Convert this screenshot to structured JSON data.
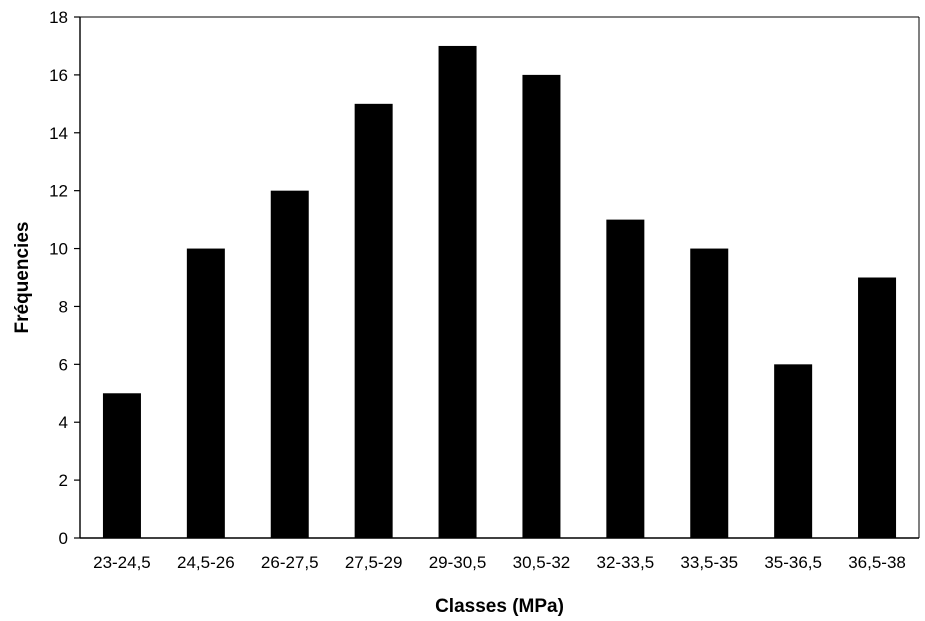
{
  "chart_data": {
    "type": "bar",
    "title": "",
    "xlabel": "Classes (MPa)",
    "ylabel": "Fréquencies",
    "categories": [
      "23-24,5",
      "24,5-26",
      "26-27,5",
      "27,5-29",
      "29-30,5",
      "30,5-32",
      "32-33,5",
      "33,5-35",
      "35-36,5",
      "36,5-38"
    ],
    "values": [
      5,
      10,
      12,
      15,
      17,
      16,
      11,
      10,
      6,
      9
    ],
    "ylim": [
      0,
      18
    ],
    "yticks": [
      0,
      2,
      4,
      6,
      8,
      10,
      12,
      14,
      16,
      18
    ],
    "grid": false,
    "legend": "none",
    "bar_color": "#000000",
    "axis_color": "#000000"
  }
}
